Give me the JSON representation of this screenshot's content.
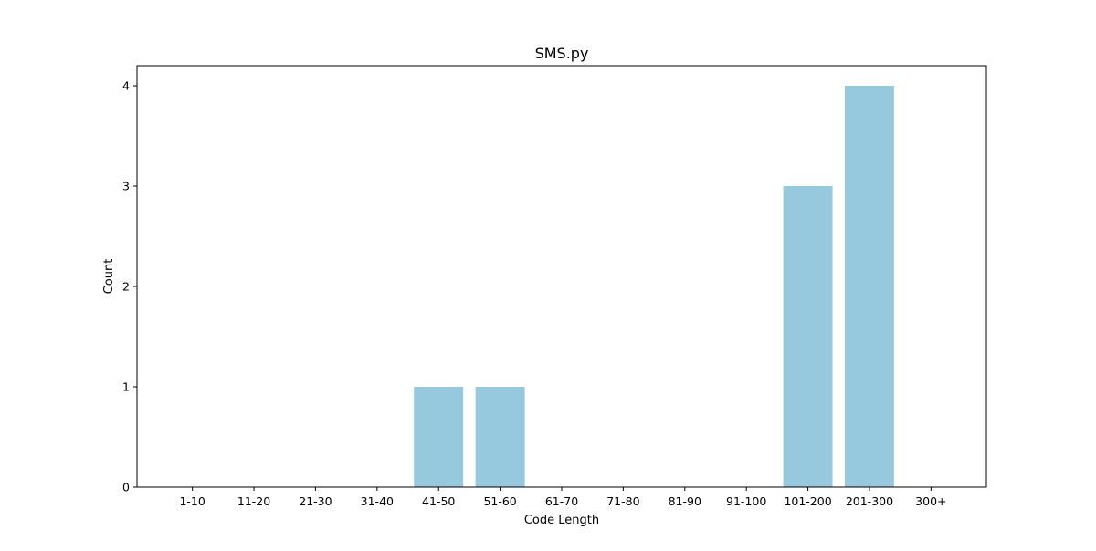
{
  "chart_data": {
    "type": "bar",
    "title": "SMS.py",
    "xlabel": "Code Length",
    "ylabel": "Count",
    "categories": [
      "1-10",
      "11-20",
      "21-30",
      "31-40",
      "41-50",
      "51-60",
      "61-70",
      "71-80",
      "81-90",
      "91-100",
      "101-200",
      "201-300",
      "300+"
    ],
    "values": [
      0,
      0,
      0,
      0,
      1,
      1,
      0,
      0,
      0,
      0,
      3,
      4,
      0
    ],
    "ylim": [
      0,
      4.2
    ],
    "yticks": [
      0,
      1,
      2,
      3,
      4
    ],
    "grid": false,
    "colors": {
      "bar": "#96c9dd",
      "axis": "#000000",
      "background": "#ffffff"
    }
  }
}
